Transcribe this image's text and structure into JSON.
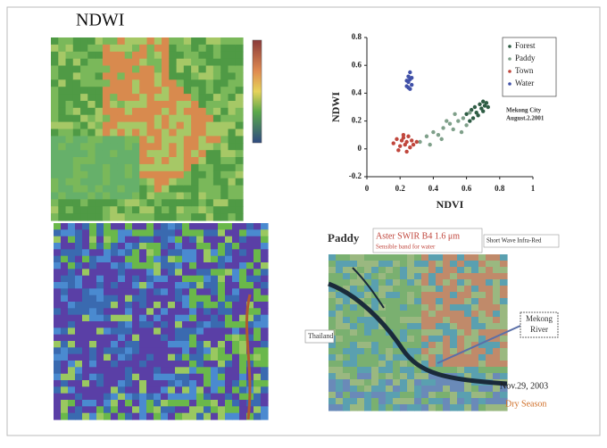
{
  "title": "NDWI",
  "chart_data": {
    "type": "scatter",
    "xlabel": "NDVI",
    "ylabel": "NDWI",
    "xlim": [
      0,
      1
    ],
    "ylim": [
      -0.2,
      0.8
    ],
    "xticks": [
      0,
      0.2,
      0.4,
      0.6,
      0.8,
      1
    ],
    "yticks": [
      -0.2,
      0,
      0.2,
      0.4,
      0.6,
      0.8
    ],
    "legend": "upper-right",
    "annotation": [
      "Mekong City",
      "August.2.2001"
    ],
    "series": [
      {
        "name": "Forest",
        "color": "#2f5d45",
        "x": [
          0.6,
          0.63,
          0.65,
          0.66,
          0.68,
          0.69,
          0.7,
          0.71,
          0.72,
          0.64,
          0.67,
          0.7,
          0.62,
          0.73
        ],
        "values": [
          0.25,
          0.28,
          0.3,
          0.26,
          0.32,
          0.29,
          0.34,
          0.31,
          0.33,
          0.22,
          0.24,
          0.27,
          0.2,
          0.3
        ]
      },
      {
        "name": "Paddy",
        "color": "#7fa08a",
        "x": [
          0.32,
          0.36,
          0.4,
          0.43,
          0.46,
          0.5,
          0.52,
          0.55,
          0.58,
          0.6,
          0.38,
          0.45,
          0.48,
          0.53,
          0.57,
          0.62
        ],
        "values": [
          0.05,
          0.09,
          0.12,
          0.1,
          0.15,
          0.18,
          0.14,
          0.2,
          0.22,
          0.17,
          0.03,
          0.07,
          0.2,
          0.25,
          0.12,
          0.26
        ]
      },
      {
        "name": "Town",
        "color": "#c0463c",
        "x": [
          0.16,
          0.18,
          0.2,
          0.21,
          0.22,
          0.23,
          0.24,
          0.25,
          0.26,
          0.27,
          0.28,
          0.3,
          0.19,
          0.24,
          0.22
        ],
        "values": [
          0.04,
          0.07,
          0.02,
          0.06,
          0.08,
          0.03,
          0.05,
          0.09,
          0.01,
          0.06,
          0.03,
          0.05,
          -0.01,
          -0.02,
          0.1
        ]
      },
      {
        "name": "Water",
        "color": "#4050a8",
        "x": [
          0.24,
          0.25,
          0.26,
          0.27,
          0.25,
          0.26,
          0.24,
          0.27,
          0.26,
          0.25
        ],
        "values": [
          0.45,
          0.48,
          0.5,
          0.46,
          0.52,
          0.43,
          0.49,
          0.51,
          0.55,
          0.44
        ]
      }
    ]
  },
  "image_panel": {
    "band_name": "Paddy",
    "sensor": "Aster SWIR B4 1.6 μm",
    "note": "Sensible band for water",
    "band_type": "Short Wave Infra-Red",
    "country": "Thailand",
    "river": [
      "Mekong",
      "River"
    ],
    "date": "Nov.29, 2003",
    "season": "Dry Season"
  }
}
